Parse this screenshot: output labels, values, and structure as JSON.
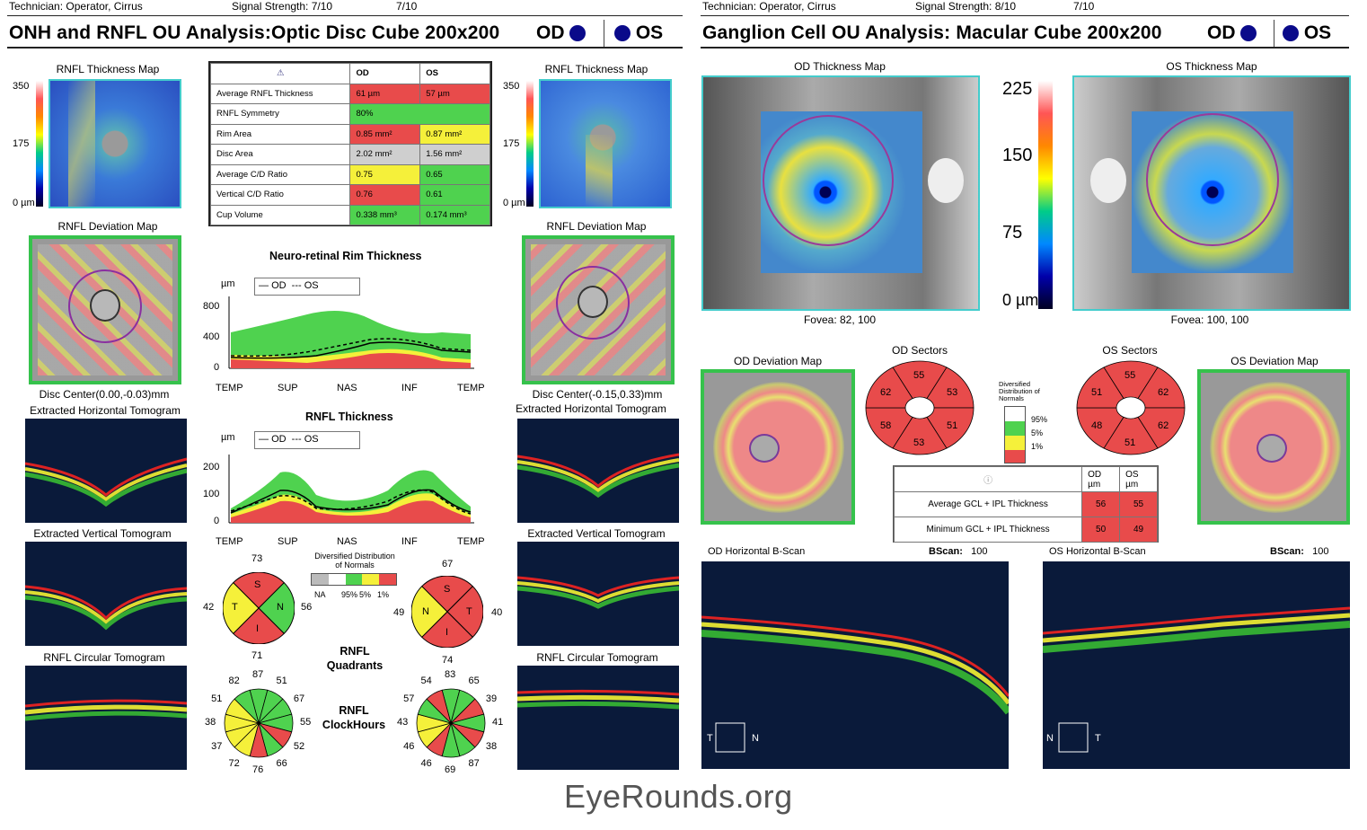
{
  "left_header": {
    "technician_label": "Technician:",
    "technician": "Operator, Cirrus",
    "signal_label": "Signal Strength:",
    "signal_od": "7/10",
    "signal_os": "7/10"
  },
  "right_header": {
    "technician_label": "Technician:",
    "technician": "Operator, Cirrus",
    "signal_label": "Signal Strength:",
    "signal_od": "8/10",
    "signal_os": "7/10"
  },
  "left_title": "ONH and RNFL OU Analysis:Optic Disc Cube 200x200",
  "right_title": "Ganglion Cell OU Analysis: Macular Cube 200x200",
  "od": "OD",
  "os": "OS",
  "onh": {
    "thickness_map_label": "RNFL Thickness Map",
    "scale": [
      "350",
      "175",
      "0 µm"
    ],
    "deviation_label": "RNFL Deviation Map",
    "od_disc_center": "Disc Center(0.00,-0.03)mm",
    "os_disc_center": "Disc Center(-0.15,0.33)mm",
    "horiz_label": "Extracted Horizontal Tomogram",
    "vert_label": "Extracted Vertical Tomogram",
    "circ_label": "RNFL Circular Tomogram"
  },
  "table": {
    "headers": [
      "OD",
      "OS"
    ],
    "rows": [
      {
        "label": "Average RNFL Thickness",
        "od": "61 µm",
        "os": "57 µm",
        "od_c": "red",
        "os_c": "red"
      },
      {
        "label": "RNFL Symmetry",
        "od": "80%",
        "os": "",
        "od_c": "grn",
        "os_c": "grn"
      },
      {
        "label": "Rim Area",
        "od": "0.85 mm²",
        "os": "0.87 mm²",
        "od_c": "red",
        "os_c": "yel"
      },
      {
        "label": "Disc Area",
        "od": "2.02 mm²",
        "os": "1.56 mm²",
        "od_c": "gry",
        "os_c": "gry"
      },
      {
        "label": "Average C/D Ratio",
        "od": "0.75",
        "os": "0.65",
        "od_c": "yel",
        "os_c": "grn"
      },
      {
        "label": "Vertical C/D Ratio",
        "od": "0.76",
        "os": "0.61",
        "od_c": "red",
        "os_c": "grn"
      },
      {
        "label": "Cup Volume",
        "od": "0.338 mm³",
        "os": "0.174 mm³",
        "od_c": "grn",
        "os_c": "grn"
      }
    ]
  },
  "rim_chart": {
    "title": "Neuro-retinal Rim Thickness",
    "unit": "µm",
    "legend_od": "OD",
    "legend_os": "OS",
    "yticks": [
      "800",
      "400",
      "0"
    ],
    "xticks": [
      "TEMP",
      "SUP",
      "NAS",
      "INF",
      "TEMP"
    ]
  },
  "rnfl_chart": {
    "title": "RNFL Thickness",
    "unit": "µm",
    "legend_od": "OD",
    "legend_os": "OS",
    "yticks": [
      "200",
      "100",
      "0"
    ],
    "xticks": [
      "TEMP",
      "SUP",
      "NAS",
      "INF",
      "TEMP"
    ]
  },
  "quadrants": {
    "label": "RNFL Quadrants",
    "od": {
      "s": "73",
      "t": "42",
      "n": "56",
      "i": "71"
    },
    "os": {
      "s": "67",
      "n": "49",
      "t": "40",
      "i": "74"
    },
    "letters": {
      "s": "S",
      "t": "T",
      "n": "N",
      "i": "I"
    }
  },
  "clock": {
    "label": "RNFL ClockHours",
    "od": [
      "87",
      "51",
      "67",
      "55",
      "52",
      "66",
      "76",
      "72",
      "37",
      "38",
      "51",
      "82"
    ],
    "os": [
      "83",
      "65",
      "39",
      "41",
      "38",
      "87",
      "69",
      "46",
      "46",
      "43",
      "57",
      "54"
    ]
  },
  "dist_legend": {
    "title": "Diversified Distribution of Normals",
    "items": [
      "NA",
      "95%",
      "5%",
      "1%"
    ]
  },
  "gcl": {
    "od_map_label": "OD Thickness Map",
    "os_map_label": "OS Thickness Map",
    "scale": [
      "225",
      "150",
      "75",
      "0 µm"
    ],
    "od_fovea": "Fovea: 82, 100",
    "os_fovea": "Fovea: 100, 100",
    "od_dev_label": "OD Deviation Map",
    "os_dev_label": "OS Deviation Map",
    "od_sectors_label": "OD Sectors",
    "os_sectors_label": "OS Sectors",
    "od_sectors": {
      "top": "55",
      "ur": "53",
      "lr": "51",
      "bot": "53",
      "ll": "58",
      "ul": "62"
    },
    "os_sectors": {
      "top": "55",
      "ur": "62",
      "lr": "62",
      "bot": "51",
      "ll": "48",
      "ul": "51"
    },
    "legend_title": "Diversified Distribution of Normals",
    "legend_items": [
      "95%",
      "5%",
      "1%"
    ],
    "table_headers": [
      "OD µm",
      "OS µm"
    ],
    "table_rows": [
      {
        "label": "Average GCL + IPL Thickness",
        "od": "56",
        "os": "55"
      },
      {
        "label": "Minimum GCL + IPL Thickness",
        "od": "50",
        "os": "49"
      }
    ],
    "od_bscan_label": "OD Horizontal B-Scan",
    "os_bscan_label": "OS Horizontal B-Scan",
    "bscan_label": "BScan:",
    "bscan_value": "100"
  },
  "watermark": "EyeRounds.org"
}
